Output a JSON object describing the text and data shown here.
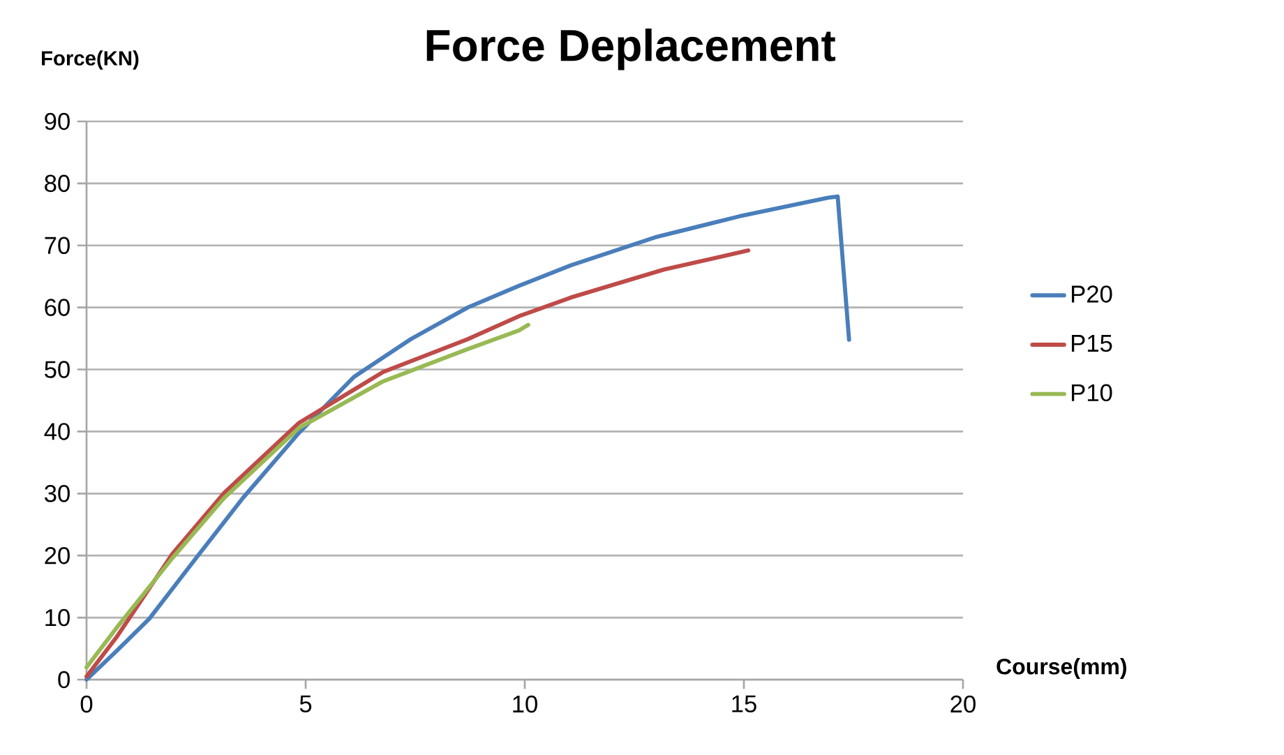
{
  "chart_data": {
    "type": "line",
    "title": "Force Deplacement",
    "xlabel": "Course(mm)",
    "ylabel": "Force(KN)",
    "xlim": [
      0,
      20
    ],
    "ylim": [
      0,
      90
    ],
    "xticks": [
      0,
      5,
      10,
      15,
      20
    ],
    "yticks": [
      0,
      10,
      20,
      30,
      40,
      50,
      60,
      70,
      80,
      90
    ],
    "grid": "y",
    "legend": "right",
    "marker": "none",
    "line_style": "solid",
    "series": [
      {
        "name": "P20",
        "color": "#4a7ebb",
        "x": [
          0,
          0.67,
          1.43,
          2.5,
          3.57,
          4.85,
          6.1,
          7.4,
          8.7,
          9.87,
          11.05,
          12.97,
          14.9,
          16.92,
          17.14,
          17.4
        ],
        "values": [
          0,
          4.5,
          9.8,
          19.6,
          29.3,
          39.8,
          48.8,
          54.9,
          60,
          63.5,
          66.8,
          71.3,
          74.7,
          77.7,
          77.9,
          54.8
        ]
      },
      {
        "name": "P15",
        "color": "#be4b48",
        "x": [
          0,
          0.68,
          1.96,
          3.14,
          4.85,
          6.77,
          8.7,
          9.87,
          11.05,
          13.17,
          15.1
        ],
        "values": [
          0.5,
          6.8,
          20.3,
          30.1,
          41.4,
          49.6,
          54.9,
          58.6,
          61.6,
          66.1,
          69.2
        ]
      },
      {
        "name": "P10",
        "color": "#98b954",
        "x": [
          0,
          0.68,
          1.96,
          3.14,
          4.85,
          6.77,
          8.7,
          9.87,
          10.08
        ],
        "values": [
          2,
          8.3,
          19.6,
          29.3,
          40.6,
          48.1,
          53.3,
          56.3,
          57.2
        ]
      }
    ]
  }
}
